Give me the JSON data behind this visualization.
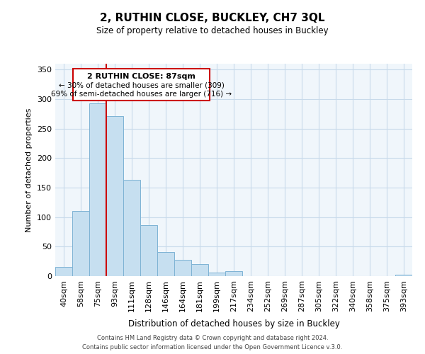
{
  "title": "2, RUTHIN CLOSE, BUCKLEY, CH7 3QL",
  "subtitle": "Size of property relative to detached houses in Buckley",
  "xlabel": "Distribution of detached houses by size in Buckley",
  "ylabel": "Number of detached properties",
  "categories": [
    "40sqm",
    "58sqm",
    "75sqm",
    "93sqm",
    "111sqm",
    "128sqm",
    "146sqm",
    "164sqm",
    "181sqm",
    "199sqm",
    "217sqm",
    "234sqm",
    "252sqm",
    "269sqm",
    "287sqm",
    "305sqm",
    "322sqm",
    "340sqm",
    "358sqm",
    "375sqm",
    "393sqm"
  ],
  "values": [
    16,
    110,
    293,
    271,
    163,
    87,
    41,
    28,
    21,
    6,
    8,
    0,
    0,
    0,
    0,
    0,
    0,
    0,
    0,
    0,
    2
  ],
  "bar_color": "#c6dff0",
  "bar_edge_color": "#7eb3d4",
  "vline_color": "#cc0000",
  "box_edge_color": "#cc0000",
  "marker_label": "2 RUTHIN CLOSE: 87sqm",
  "annotation_line1": "← 30% of detached houses are smaller (309)",
  "annotation_line2": "69% of semi-detached houses are larger (716) →",
  "ylim": [
    0,
    360
  ],
  "footer1": "Contains HM Land Registry data © Crown copyright and database right 2024.",
  "footer2": "Contains public sector information licensed under the Open Government Licence v.3.0."
}
